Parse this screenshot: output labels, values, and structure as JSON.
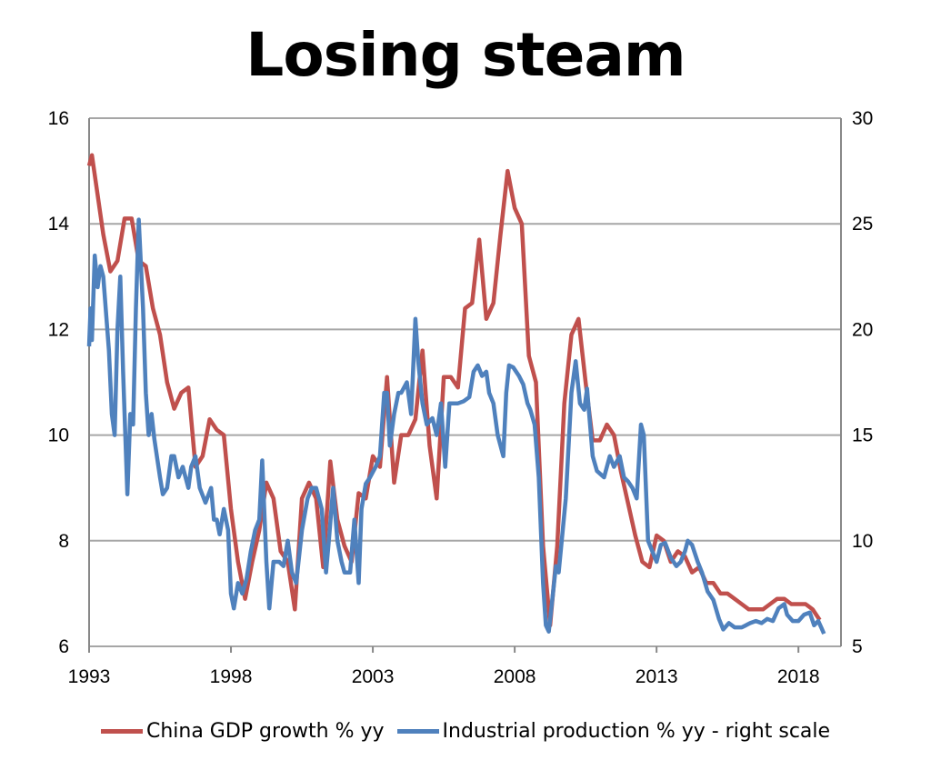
{
  "chart_data": {
    "type": "line",
    "title": "Losing steam",
    "xlim": [
      1993,
      2019.5
    ],
    "x_ticks": [
      "1993",
      "1998",
      "2003",
      "2008",
      "2013",
      "2018"
    ],
    "y_left": {
      "range": [
        6,
        16
      ],
      "ticks": [
        "6",
        "8",
        "10",
        "12",
        "14",
        "16"
      ]
    },
    "y_right": {
      "range": [
        5,
        30
      ],
      "ticks": [
        "5",
        "10",
        "15",
        "20",
        "25",
        "30"
      ]
    },
    "grid": true,
    "legend_position": "bottom",
    "series": [
      {
        "name": "China GDP growth % yy",
        "axis": "left",
        "color": "#c0504d",
        "x": [
          1993.0,
          1993.1,
          1993.5,
          1993.75,
          1994.0,
          1994.25,
          1994.5,
          1994.75,
          1995.0,
          1995.25,
          1995.5,
          1995.75,
          1996.0,
          1996.25,
          1996.5,
          1996.75,
          1997.0,
          1997.25,
          1997.5,
          1997.75,
          1998.0,
          1998.25,
          1998.5,
          1998.75,
          1999.0,
          1999.25,
          1999.5,
          1999.75,
          2000.0,
          2000.25,
          2000.5,
          2000.75,
          2001.0,
          2001.25,
          2001.5,
          2001.75,
          2002.0,
          2002.25,
          2002.5,
          2002.75,
          2003.0,
          2003.25,
          2003.5,
          2003.75,
          2004.0,
          2004.25,
          2004.5,
          2004.75,
          2005.0,
          2005.25,
          2005.5,
          2005.75,
          2006.0,
          2006.25,
          2006.5,
          2006.75,
          2007.0,
          2007.25,
          2007.5,
          2007.75,
          2008.0,
          2008.25,
          2008.5,
          2008.75,
          2009.0,
          2009.25,
          2009.5,
          2009.75,
          2010.0,
          2010.25,
          2010.5,
          2010.75,
          2011.0,
          2011.25,
          2011.5,
          2011.75,
          2012.0,
          2012.25,
          2012.5,
          2012.75,
          2013.0,
          2013.25,
          2013.5,
          2013.75,
          2014.0,
          2014.25,
          2014.5,
          2014.75,
          2015.0,
          2015.25,
          2015.5,
          2015.75,
          2016.0,
          2016.25,
          2016.5,
          2016.75,
          2017.0,
          2017.25,
          2017.5,
          2017.75,
          2018.0,
          2018.25,
          2018.5,
          2018.75
        ],
        "y": [
          15.1,
          15.3,
          13.8,
          13.1,
          13.3,
          14.1,
          14.1,
          13.3,
          13.2,
          12.4,
          11.9,
          11.0,
          10.5,
          10.8,
          10.9,
          9.4,
          9.6,
          10.3,
          10.1,
          10.0,
          8.6,
          7.6,
          6.9,
          7.6,
          8.2,
          9.1,
          8.8,
          7.8,
          7.6,
          6.7,
          8.8,
          9.1,
          8.8,
          7.5,
          9.5,
          8.4,
          7.9,
          7.6,
          8.9,
          8.8,
          9.6,
          9.4,
          11.1,
          9.1,
          10.0,
          10.0,
          10.3,
          11.6,
          9.8,
          8.8,
          11.1,
          11.1,
          10.9,
          12.4,
          12.5,
          13.7,
          12.2,
          12.5,
          13.8,
          15.0,
          14.3,
          14.0,
          11.5,
          11.0,
          7.9,
          6.4,
          7.9,
          10.6,
          11.9,
          12.2,
          11.0,
          9.9,
          9.9,
          10.2,
          10.0,
          9.3,
          8.7,
          8.1,
          7.6,
          7.5,
          8.1,
          8.0,
          7.6,
          7.8,
          7.7,
          7.4,
          7.5,
          7.2,
          7.2,
          7.0,
          7.0,
          6.9,
          6.8,
          6.7,
          6.7,
          6.7,
          6.8,
          6.9,
          6.9,
          6.8,
          6.8,
          6.8,
          6.7,
          6.5
        ]
      },
      {
        "name": "Industrial production % yy - right scale",
        "axis": "right",
        "color": "#4f81bd",
        "x": [
          1993.0,
          1993.05,
          1993.1,
          1993.2,
          1993.3,
          1993.4,
          1993.5,
          1993.7,
          1993.8,
          1993.9,
          1994.0,
          1994.1,
          1994.2,
          1994.35,
          1994.45,
          1994.55,
          1994.65,
          1994.75,
          1994.9,
          1995.0,
          1995.1,
          1995.2,
          1995.3,
          1995.5,
          1995.6,
          1995.75,
          1995.9,
          1996.0,
          1996.15,
          1996.3,
          1996.5,
          1996.6,
          1996.75,
          1996.9,
          1997.1,
          1997.3,
          1997.4,
          1997.5,
          1997.6,
          1997.75,
          1997.9,
          1998.0,
          1998.1,
          1998.25,
          1998.4,
          1998.55,
          1998.7,
          1998.85,
          1999.0,
          1999.1,
          1999.25,
          1999.35,
          1999.5,
          1999.7,
          1999.85,
          2000.0,
          2000.15,
          2000.3,
          2000.5,
          2000.7,
          2000.85,
          2001.0,
          2001.2,
          2001.35,
          2001.45,
          2001.6,
          2001.75,
          2001.9,
          2002.0,
          2002.2,
          2002.35,
          2002.5,
          2002.6,
          2002.75,
          2002.9,
          2003.1,
          2003.25,
          2003.4,
          2003.5,
          2003.6,
          2003.75,
          2003.9,
          2004.0,
          2004.2,
          2004.35,
          2004.5,
          2004.6,
          2004.75,
          2004.9,
          2005.1,
          2005.25,
          2005.4,
          2005.55,
          2005.7,
          2005.85,
          2006.0,
          2006.2,
          2006.4,
          2006.55,
          2006.7,
          2006.85,
          2007.0,
          2007.1,
          2007.25,
          2007.4,
          2007.6,
          2007.7,
          2007.8,
          2007.95,
          2008.15,
          2008.3,
          2008.45,
          2008.55,
          2008.7,
          2008.85,
          2009.0,
          2009.1,
          2009.2,
          2009.35,
          2009.45,
          2009.55,
          2009.8,
          2010.0,
          2010.15,
          2010.3,
          2010.45,
          2010.55,
          2010.75,
          2010.9,
          2011.15,
          2011.35,
          2011.5,
          2011.7,
          2011.85,
          2012.0,
          2012.15,
          2012.3,
          2012.45,
          2012.55,
          2012.7,
          2012.85,
          2013.0,
          2013.15,
          2013.3,
          2013.5,
          2013.7,
          2013.85,
          2014.0,
          2014.1,
          2014.25,
          2014.45,
          2014.6,
          2014.8,
          2015.0,
          2015.2,
          2015.35,
          2015.55,
          2015.75,
          2016.0,
          2016.15,
          2016.3,
          2016.5,
          2016.7,
          2016.9,
          2017.1,
          2017.3,
          2017.5,
          2017.6,
          2017.8,
          2018.0,
          2018.2,
          2018.4,
          2018.55,
          2018.7,
          2018.8,
          2018.9
        ],
        "y": [
          19.2,
          21,
          19.5,
          23.5,
          22,
          23,
          22.5,
          19,
          16,
          15,
          20,
          22.5,
          18,
          12.2,
          16,
          15.5,
          21,
          25.2,
          21,
          17,
          15,
          16,
          14.8,
          13,
          12.2,
          12.5,
          14,
          14,
          13,
          13.5,
          12.5,
          13.5,
          14,
          12.5,
          11.8,
          12.5,
          11,
          11,
          10.3,
          11.5,
          10.5,
          7.5,
          6.8,
          8,
          7.5,
          8.2,
          9.5,
          10.5,
          11,
          13.8,
          9,
          6.8,
          9,
          9.0,
          8.8,
          10,
          8.5,
          8,
          10.5,
          12.0,
          12.5,
          12.5,
          11.5,
          8.5,
          10,
          12.5,
          10,
          9.0,
          8.5,
          8.5,
          11,
          8.0,
          11.5,
          12.7,
          13,
          13.5,
          14,
          17,
          17,
          14.5,
          16,
          17,
          17,
          17.5,
          16.0,
          20.5,
          18.5,
          16.5,
          15.5,
          15.8,
          15,
          16.5,
          13.5,
          16.5,
          16.5,
          16.5,
          16.6,
          16.8,
          18,
          18.3,
          17.8,
          18.0,
          17.0,
          16.5,
          15,
          14,
          17,
          18.3,
          18.2,
          17.8,
          17.4,
          16.5,
          16.2,
          15.5,
          13,
          8,
          6,
          5.7,
          7.5,
          8.8,
          8.5,
          12,
          17,
          18.5,
          16.5,
          16.2,
          17.2,
          14,
          13.3,
          13,
          14,
          13.5,
          14,
          13,
          12.8,
          12.5,
          12,
          15.5,
          15,
          10,
          9.5,
          9.0,
          9.8,
          9.9,
          9.2,
          8.8,
          9.0,
          9.5,
          10,
          9.8,
          9,
          8.5,
          7.6,
          7.2,
          6.3,
          5.8,
          6.1,
          5.9,
          5.9,
          6.0,
          6.1,
          6.2,
          6.1,
          6.3,
          6.2,
          6.8,
          7.0,
          6.5,
          6.2,
          6.2,
          6.5,
          6.6,
          6.0,
          6.2,
          5.9,
          5.6
        ]
      }
    ]
  }
}
